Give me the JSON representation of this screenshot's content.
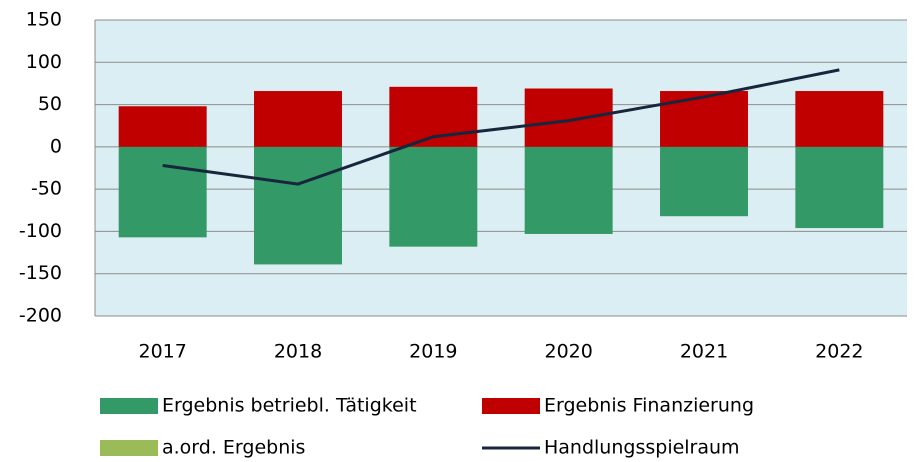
{
  "chart_data": {
    "type": "bar",
    "categories": [
      "2017",
      "2018",
      "2019",
      "2020",
      "2021",
      "2022"
    ],
    "series": [
      {
        "name": "Ergebnis betriebl. Tätigkeit",
        "color": "#339966",
        "type": "bar",
        "values": [
          -107,
          -139,
          -118,
          -103,
          -82,
          -96
        ]
      },
      {
        "name": "Ergebnis Finanzierung",
        "color": "#c00000",
        "type": "bar",
        "values": [
          48,
          66,
          71,
          69,
          66,
          66
        ]
      },
      {
        "name": "a.ord. Ergebnis",
        "color": "#9bbb59",
        "type": "bar",
        "values": [
          0,
          0,
          0,
          0,
          0,
          0
        ]
      },
      {
        "name": "Handlungsspielraum",
        "color": "#17253d",
        "type": "line",
        "values": [
          -22,
          -44,
          12,
          31,
          59,
          91
        ]
      }
    ],
    "ylim": [
      -200,
      150
    ],
    "yticks": [
      -200,
      -150,
      -100,
      -50,
      0,
      50,
      100,
      150
    ],
    "grid": true
  }
}
